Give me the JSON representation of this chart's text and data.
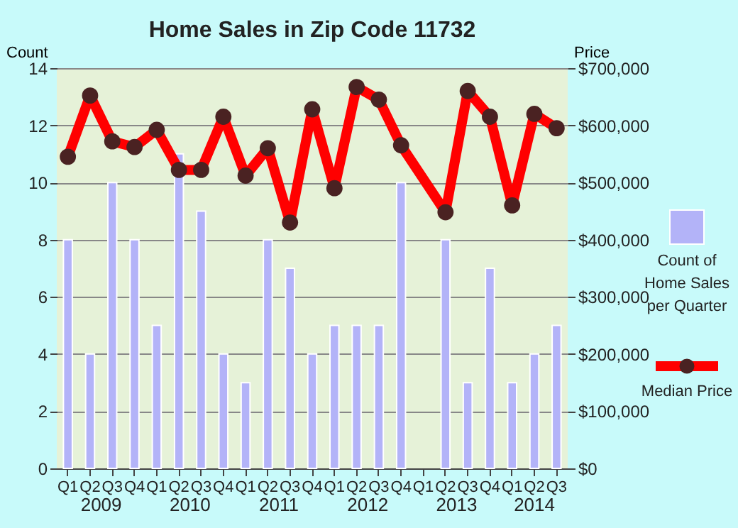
{
  "chart_data": {
    "type": "bar",
    "title": "Home Sales in Zip Code 11732",
    "categories": [
      "Q1",
      "Q2",
      "Q3",
      "Q4",
      "Q1",
      "Q2",
      "Q3",
      "Q4",
      "Q1",
      "Q2",
      "Q3",
      "Q4",
      "Q1",
      "Q2",
      "Q3",
      "Q4",
      "Q1",
      "Q2",
      "Q3",
      "Q4",
      "Q1",
      "Q2",
      "Q3"
    ],
    "annotations": [
      "2009",
      "2010",
      "2011",
      "2012",
      "2013",
      "2014"
    ],
    "ylabel": "Count",
    "y2label": "Price",
    "series": [
      {
        "name": "Count of Home Sales per Quarter",
        "color": "#b3b3f8",
        "values": [
          8,
          4,
          10,
          8,
          5,
          11,
          9,
          4,
          3,
          8,
          7,
          4,
          5,
          5,
          5,
          10,
          null,
          8,
          3,
          7,
          3,
          4,
          5
        ]
      },
      {
        "name": "Median Price",
        "type": "line",
        "axis": "y2",
        "color": "#ff0000",
        "marker": "circle",
        "line_style": "solid",
        "values": [
          545000,
          652000,
          572000,
          562000,
          592000,
          522000,
          522000,
          615000,
          512000,
          560000,
          430000,
          628000,
          490000,
          667000,
          645000,
          565000,
          null,
          448000,
          660000,
          615000,
          460000,
          620000,
          595000
        ]
      }
    ],
    "ylim": [
      0,
      14
    ],
    "yticks": [
      0,
      2,
      4,
      6,
      8,
      10,
      12,
      14
    ],
    "y2lim": [
      0,
      700000
    ],
    "y2ticks": [
      {
        "value": 0,
        "label": "$0"
      },
      {
        "value": 100000,
        "label": "$100,000"
      },
      {
        "value": 200000,
        "label": "$200,000"
      },
      {
        "value": 300000,
        "label": "$300,000"
      },
      {
        "value": 400000,
        "label": "$400,000"
      },
      {
        "value": 500000,
        "label": "$500,000"
      },
      {
        "value": 600000,
        "label": "$600,000"
      },
      {
        "value": 700000,
        "label": "$700,000"
      }
    ],
    "grid": "y",
    "legend": "right"
  }
}
